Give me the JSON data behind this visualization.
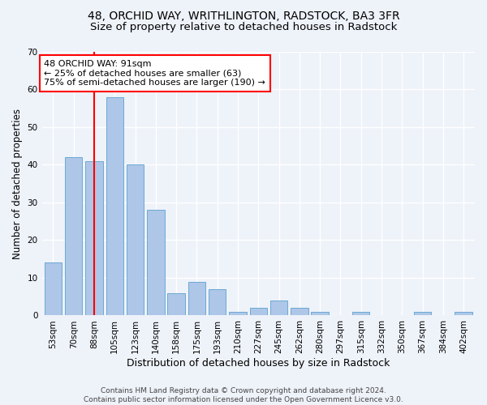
{
  "title1": "48, ORCHID WAY, WRITHLINGTON, RADSTOCK, BA3 3FR",
  "title2": "Size of property relative to detached houses in Radstock",
  "xlabel": "Distribution of detached houses by size in Radstock",
  "ylabel": "Number of detached properties",
  "categories": [
    "53sqm",
    "70sqm",
    "88sqm",
    "105sqm",
    "123sqm",
    "140sqm",
    "158sqm",
    "175sqm",
    "193sqm",
    "210sqm",
    "227sqm",
    "245sqm",
    "262sqm",
    "280sqm",
    "297sqm",
    "315sqm",
    "332sqm",
    "350sqm",
    "367sqm",
    "384sqm",
    "402sqm"
  ],
  "values": [
    14,
    42,
    41,
    58,
    40,
    28,
    6,
    9,
    7,
    1,
    2,
    4,
    2,
    1,
    0,
    1,
    0,
    0,
    1,
    0,
    1
  ],
  "bar_color": "#aec6e8",
  "bar_edge_color": "#6aaad4",
  "vline_x": 2.0,
  "vline_color": "red",
  "annotation_text": "48 ORCHID WAY: 91sqm\n← 25% of detached houses are smaller (63)\n75% of semi-detached houses are larger (190) →",
  "annotation_box_color": "white",
  "annotation_box_edge": "red",
  "ylim": [
    0,
    70
  ],
  "yticks": [
    0,
    10,
    20,
    30,
    40,
    50,
    60,
    70
  ],
  "footnote": "Contains HM Land Registry data © Crown copyright and database right 2024.\nContains public sector information licensed under the Open Government Licence v3.0.",
  "bg_color": "#eef2f9",
  "grid_color": "#ffffff",
  "title1_fontsize": 10,
  "title2_fontsize": 9.5,
  "xlabel_fontsize": 9,
  "ylabel_fontsize": 8.5,
  "tick_fontsize": 7.5,
  "annot_fontsize": 8,
  "footnote_fontsize": 6.5
}
